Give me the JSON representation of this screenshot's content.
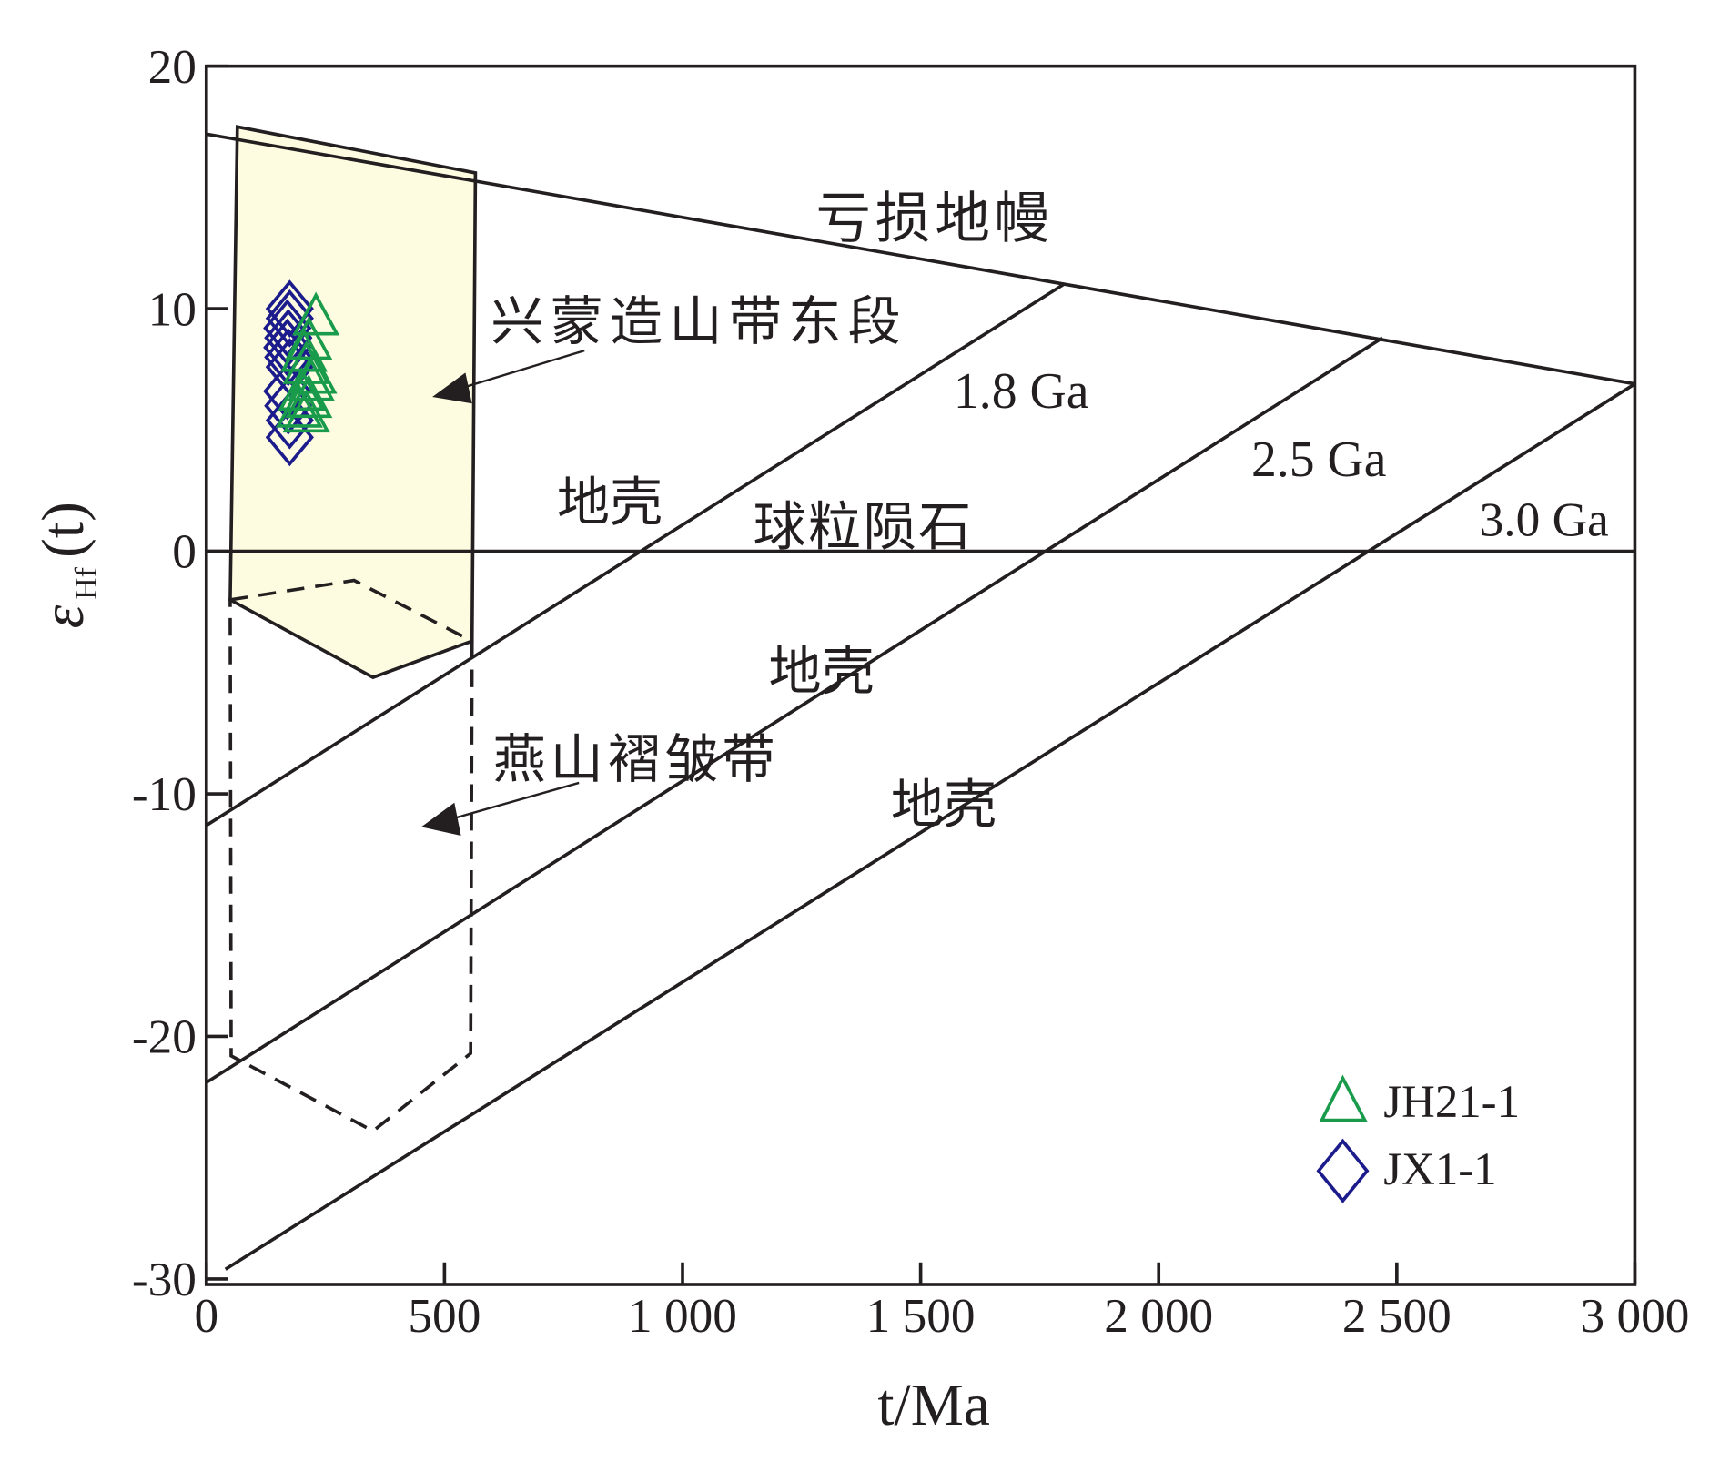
{
  "chart_data": {
    "type": "scatter",
    "title": "",
    "xlabel": "t/Ma",
    "ylabel_main": "ε",
    "ylabel_sub": "Hf",
    "ylabel_paren": "(t)",
    "xlim": [
      0,
      3000
    ],
    "ylim": [
      -30,
      20
    ],
    "x_ticks": [
      0,
      500,
      1000,
      1500,
      2000,
      2500,
      3000
    ],
    "x_tick_labels": [
      "0",
      "500",
      "1 000",
      "1 500",
      "2 000",
      "2 500",
      "3 000"
    ],
    "y_ticks": [
      20,
      10,
      0,
      -10,
      -20,
      -30
    ],
    "y_tick_labels": [
      "20",
      "10",
      "0",
      "-10",
      "-20",
      "-30"
    ],
    "grid": false,
    "legend_position": "bottom-right",
    "series": [
      {
        "name": "JH21-1",
        "marker": "triangle",
        "color": "#1a9b4b",
        "points": [
          [
            230,
            9.6
          ],
          [
            215,
            8.6
          ],
          [
            205,
            8.1
          ],
          [
            210,
            7.6
          ],
          [
            225,
            7.2
          ],
          [
            220,
            6.9
          ],
          [
            200,
            6.5
          ],
          [
            215,
            6.2
          ],
          [
            195,
            5.8
          ],
          [
            210,
            5.6
          ]
        ]
      },
      {
        "name": "JX1-1",
        "marker": "diamond",
        "color": "#1c1c8c",
        "points": [
          [
            175,
            10.0
          ],
          [
            175,
            9.6
          ],
          [
            170,
            9.2
          ],
          [
            172,
            8.8
          ],
          [
            170,
            8.4
          ],
          [
            172,
            8.0
          ],
          [
            175,
            7.6
          ],
          [
            170,
            6.6
          ],
          [
            172,
            6.0
          ],
          [
            175,
            5.4
          ],
          [
            175,
            4.7
          ]
        ]
      }
    ],
    "reference_lines": [
      {
        "name": "depleted-mantle",
        "label": "亏损地幔",
        "points": [
          [
            0,
            17.2
          ],
          [
            3000,
            6.9
          ]
        ]
      },
      {
        "name": "chondrite",
        "label": "球粒陨石",
        "points": [
          [
            0,
            0
          ],
          [
            3000,
            0
          ]
        ]
      },
      {
        "name": "crust-1.8Ga",
        "label": "1.8 Ga",
        "points": [
          [
            0,
            -11.3
          ],
          [
            1800,
            11.0
          ]
        ]
      },
      {
        "name": "crust-2.5Ga",
        "label": "2.5 Ga",
        "points": [
          [
            0,
            -21.9
          ],
          [
            2470,
            8.8
          ]
        ]
      },
      {
        "name": "crust-3.0Ga",
        "label": "3.0 Ga",
        "points": [
          [
            40,
            -29.6
          ],
          [
            3000,
            6.9
          ]
        ]
      }
    ],
    "fields": [
      {
        "name": "xingmeng-orogen-east",
        "label": "兴蒙造山带东段",
        "fill": "#fefce0",
        "style": "solid",
        "points": [
          [
            65,
            17.5
          ],
          [
            565,
            15.6
          ],
          [
            558,
            -3.7
          ],
          [
            350,
            -5.2
          ],
          [
            50,
            -2.0
          ]
        ]
      },
      {
        "name": "yanshan-fold-belt",
        "label": "燕山褶皱带",
        "style": "dashed",
        "points": [
          [
            50,
            -2.0
          ],
          [
            310,
            -1.2
          ],
          [
            558,
            -3.7
          ],
          [
            555,
            -20.7
          ],
          [
            350,
            -23.9
          ],
          [
            52,
            -20.8
          ]
        ]
      }
    ],
    "annotations": {
      "crust_label": "地壳",
      "crust_labels": [
        "地壳",
        "地壳",
        "地壳"
      ]
    }
  }
}
